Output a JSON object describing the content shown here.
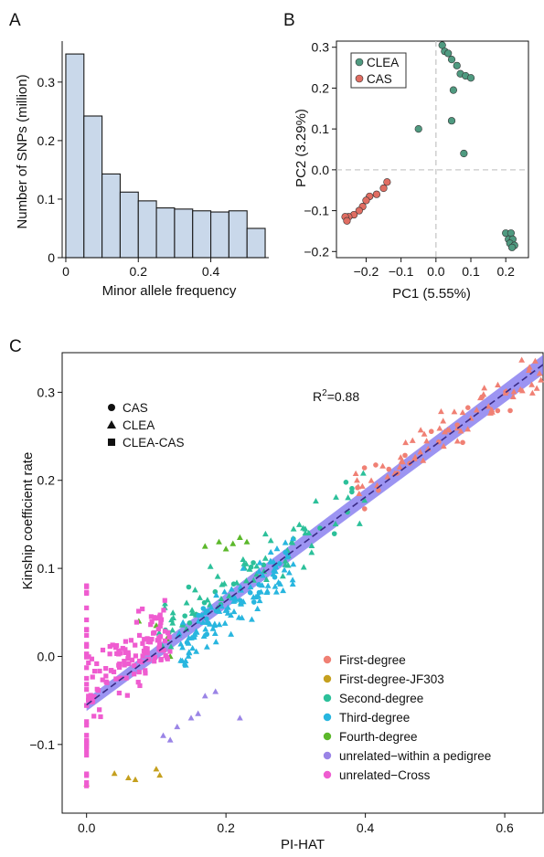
{
  "panels": {
    "a": "A",
    "b": "B",
    "c": "C"
  },
  "chart_data": [
    {
      "type": "bar",
      "panel": "A",
      "xlabel": "Minor allele frequency",
      "ylabel": "Number of SNPs (million)",
      "bin_edges": [
        0.0,
        0.05,
        0.1,
        0.15,
        0.2,
        0.25,
        0.3,
        0.35,
        0.4,
        0.45,
        0.5,
        0.55
      ],
      "values": [
        0.348,
        0.242,
        0.143,
        0.112,
        0.097,
        0.085,
        0.083,
        0.08,
        0.078,
        0.08,
        0.05
      ],
      "xlim": [
        -0.01,
        0.56
      ],
      "ylim": [
        0,
        0.37
      ],
      "xticks": [
        {
          "v": 0,
          "label": "0"
        },
        {
          "v": 0.2,
          "label": "0.2"
        },
        {
          "v": 0.4,
          "label": "0.4"
        }
      ],
      "yticks": [
        {
          "v": 0,
          "label": "0"
        },
        {
          "v": 0.1,
          "label": "0.1"
        },
        {
          "v": 0.2,
          "label": "0.2"
        },
        {
          "v": 0.3,
          "label": "0.3"
        }
      ],
      "color": "#c9d8ea",
      "edge": "#1a1a1a"
    },
    {
      "type": "scatter",
      "panel": "B",
      "xlabel": "PC1 (5.55%)",
      "ylabel": "PC2 (3.29%)",
      "xlim": [
        -0.285,
        0.265
      ],
      "ylim": [
        -0.215,
        0.315
      ],
      "xticks": [
        {
          "v": -0.2,
          "label": "−0.2"
        },
        {
          "v": -0.1,
          "label": "−0.1"
        },
        {
          "v": 0.0,
          "label": "0.0"
        },
        {
          "v": 0.1,
          "label": "0.1"
        },
        {
          "v": 0.2,
          "label": "0.2"
        }
      ],
      "yticks": [
        {
          "v": -0.2,
          "label": "−0.2"
        },
        {
          "v": -0.1,
          "label": "−0.1"
        },
        {
          "v": 0.0,
          "label": "0.0"
        },
        {
          "v": 0.1,
          "label": "0.1"
        },
        {
          "v": 0.2,
          "label": "0.2"
        },
        {
          "v": 0.3,
          "label": "0.3"
        }
      ],
      "legend_position": "top-left",
      "series": [
        {
          "name": "CLEA",
          "color": "#4f9a80",
          "x": [
            0.018,
            0.025,
            0.035,
            0.045,
            0.06,
            0.07,
            0.085,
            0.1,
            0.05,
            0.045,
            -0.05,
            0.08,
            0.2,
            0.215,
            0.208,
            0.22,
            0.212,
            0.225,
            0.218
          ],
          "y": [
            0.305,
            0.29,
            0.285,
            0.27,
            0.255,
            0.235,
            0.23,
            0.225,
            0.195,
            0.12,
            0.1,
            0.04,
            -0.155,
            -0.155,
            -0.17,
            -0.17,
            -0.18,
            -0.185,
            -0.19
          ]
        },
        {
          "name": "CAS",
          "color": "#e06d62",
          "x": [
            -0.14,
            -0.15,
            -0.17,
            -0.19,
            -0.2,
            -0.21,
            -0.22,
            -0.235,
            -0.25,
            -0.26,
            -0.255
          ],
          "y": [
            -0.03,
            -0.045,
            -0.06,
            -0.065,
            -0.075,
            -0.09,
            -0.1,
            -0.11,
            -0.115,
            -0.115,
            -0.125
          ]
        }
      ]
    },
    {
      "type": "scatter",
      "panel": "C",
      "xlabel": "PI-HAT",
      "ylabel": "Kinship coefficient rate",
      "xlim": [
        -0.035,
        0.655
      ],
      "ylim": [
        -0.178,
        0.345
      ],
      "xticks": [
        {
          "v": 0.0,
          "label": "0.0"
        },
        {
          "v": 0.2,
          "label": "0.2"
        },
        {
          "v": 0.4,
          "label": "0.4"
        },
        {
          "v": 0.6,
          "label": "0.6"
        }
      ],
      "yticks": [
        {
          "v": -0.1,
          "label": "−0.1"
        },
        {
          "v": 0.0,
          "label": "0.0"
        },
        {
          "v": 0.1,
          "label": "0.1"
        },
        {
          "v": 0.2,
          "label": "0.2"
        },
        {
          "v": 0.3,
          "label": "0.3"
        }
      ],
      "annotation": {
        "r2_label": "R",
        "r2_sup": "2",
        "r2_value": "=0.88"
      },
      "fit": {
        "intercept": -0.055,
        "slope": 0.59,
        "band": 0.007,
        "line_color": "#3a2b86",
        "band_color": "#7b70ee"
      },
      "shape_legend": [
        {
          "shape": "circle",
          "label": "CAS"
        },
        {
          "shape": "triangle",
          "label": "CLEA"
        },
        {
          "shape": "square",
          "label": "CLEA-CAS"
        }
      ],
      "series": [
        {
          "name": "First-degree",
          "color": "#f08074",
          "shape": "triangle",
          "seed": 11,
          "n": 80,
          "x": [
            0.38,
            0.655
          ],
          "y_center": [
            0.185,
            0.326
          ],
          "spread": 0.018
        },
        {
          "name": "First-degree-JF303",
          "color": "#c5a01f",
          "shape": "triangle",
          "n": 6,
          "points": [
            [
              0.0,
              -0.145
            ],
            [
              0.04,
              -0.133
            ],
            [
              0.06,
              -0.138
            ],
            [
              0.07,
              -0.14
            ],
            [
              0.1,
              -0.128
            ],
            [
              0.105,
              -0.135
            ]
          ]
        },
        {
          "name": "Second-degree",
          "color": "#2cc09a",
          "shape": "triangle",
          "seed": 23,
          "n": 90,
          "x": [
            0.1,
            0.4
          ],
          "y_center": [
            0.03,
            0.18
          ],
          "spread": 0.025
        },
        {
          "name": "Third-degree",
          "color": "#28b6df",
          "shape": "triangle",
          "seed": 37,
          "n": 120,
          "x": [
            0.13,
            0.3
          ],
          "y_center": [
            0.005,
            0.115
          ],
          "spread": 0.022
        },
        {
          "name": "Fourth-degree",
          "color": "#5cb82b",
          "shape": "triangle",
          "n": 10,
          "points": [
            [
              0.17,
              0.125
            ],
            [
              0.19,
              0.13
            ],
            [
              0.2,
              0.122
            ],
            [
              0.21,
              0.128
            ],
            [
              0.22,
              0.135
            ],
            [
              0.23,
              0.13
            ],
            [
              0.1,
              0.035
            ],
            [
              0.12,
              0.0
            ],
            [
              0.075,
              0.04
            ],
            [
              0.115,
              0.02
            ]
          ]
        },
        {
          "name": "unrelated−within a pedigree",
          "color": "#9a84e6",
          "shape": "triangle",
          "n": 8,
          "points": [
            [
              0.11,
              -0.09
            ],
            [
              0.12,
              -0.095
            ],
            [
              0.13,
              -0.08
            ],
            [
              0.15,
              -0.07
            ],
            [
              0.16,
              -0.065
            ],
            [
              0.17,
              -0.045
            ],
            [
              0.185,
              -0.04
            ],
            [
              0.22,
              -0.07
            ]
          ]
        },
        {
          "name": "unrelated−Cross",
          "color": "#ef5cd0",
          "shape": "square",
          "seed": 53,
          "n": 160,
          "x": [
            0.0,
            0.12
          ],
          "y_center": [
            -0.04,
            0.035
          ],
          "spread": 0.03
        }
      ]
    }
  ]
}
